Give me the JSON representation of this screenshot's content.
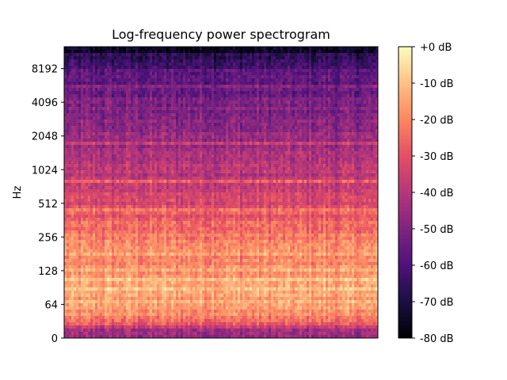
{
  "chart_data": {
    "type": "heatmap",
    "title": "Log-frequency power spectrogram",
    "xlabel": "",
    "ylabel": "Hz",
    "y_scale": "log",
    "y_ticks": [
      {
        "value": 0,
        "label": "0"
      },
      {
        "value": 64,
        "label": "64"
      },
      {
        "value": 128,
        "label": "128"
      },
      {
        "value": 256,
        "label": "256"
      },
      {
        "value": 512,
        "label": "512"
      },
      {
        "value": 1024,
        "label": "1024"
      },
      {
        "value": 2048,
        "label": "2048"
      },
      {
        "value": 4096,
        "label": "4096"
      },
      {
        "value": 8192,
        "label": "8192"
      }
    ],
    "x_ticks": [],
    "colorbar": {
      "colormap": "magma",
      "range_db": [
        -80,
        0
      ],
      "ticks": [
        {
          "value": 0,
          "label": "+0 dB"
        },
        {
          "value": -10,
          "label": "-10 dB"
        },
        {
          "value": -20,
          "label": "-20 dB"
        },
        {
          "value": -30,
          "label": "-30 dB"
        },
        {
          "value": -40,
          "label": "-40 dB"
        },
        {
          "value": -50,
          "label": "-50 dB"
        },
        {
          "value": -60,
          "label": "-60 dB"
        },
        {
          "value": -70,
          "label": "-70 dB"
        },
        {
          "value": -80,
          "label": "-80 dB"
        }
      ]
    },
    "approx_level_profile_db": [
      {
        "freq_hz": 0,
        "db": -55
      },
      {
        "freq_hz": 32,
        "db": -25
      },
      {
        "freq_hz": 64,
        "db": -14
      },
      {
        "freq_hz": 128,
        "db": -18
      },
      {
        "freq_hz": 256,
        "db": -22
      },
      {
        "freq_hz": 512,
        "db": -33
      },
      {
        "freq_hz": 1024,
        "db": -40
      },
      {
        "freq_hz": 2048,
        "db": -46
      },
      {
        "freq_hz": 4096,
        "db": -52
      },
      {
        "freq_hz": 8192,
        "db": -60
      },
      {
        "freq_hz": 11025,
        "db": -68
      }
    ],
    "grid": false
  }
}
